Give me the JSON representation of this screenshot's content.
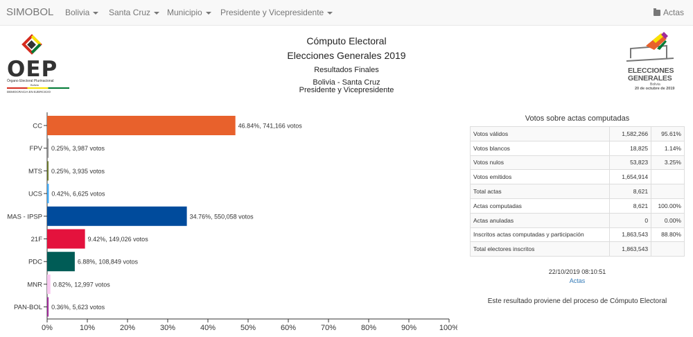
{
  "navbar": {
    "brand": "SIMOBOL",
    "items": [
      {
        "label": "Bolivia",
        "left": 94
      },
      {
        "label": "Santa Cruz",
        "left": 157
      },
      {
        "label": "Municipio",
        "left": 241
      },
      {
        "label": "Presidente y Vicepresidente",
        "left": 318
      }
    ],
    "actas": "Actas"
  },
  "header": {
    "title": "Cómputo Electoral",
    "subtitle": "Elecciones Generales 2019",
    "results": "Resultados Finales",
    "location": "Bolivia - Santa Cruz",
    "office": "Presidente y Vicepresidente"
  },
  "logos": {
    "oep": {
      "text": "OEP",
      "line1": "Órgano Electoral Plurinacional",
      "line2": "Bolivia",
      "line3": "DEMOCRACIA EN EJERCICIO"
    },
    "elecciones": {
      "line1": "ELECCIONES",
      "line2": "GENERALES",
      "line3": "Bolivia",
      "line4": "20 de octubre de 2019"
    }
  },
  "chart_data": {
    "type": "bar",
    "orientation": "horizontal",
    "categories": [
      "CC",
      "FPV",
      "MTS",
      "UCS",
      "MAS - IPSP",
      "21F",
      "PDC",
      "MNR",
      "PAN-BOL"
    ],
    "percent": [
      46.84,
      0.25,
      0.25,
      0.42,
      34.76,
      9.42,
      6.88,
      0.82,
      0.36
    ],
    "votes": [
      "741,166",
      "3,987",
      "3,935",
      "6,625",
      "550,058",
      "149,026",
      "108,849",
      "12,997",
      "5,623"
    ],
    "votes_suffix": "votos",
    "colors": [
      "#e8612c",
      "#8c8c8c",
      "#6c7a2d",
      "#3fa9f5",
      "#004b9c",
      "#e4123d",
      "#005c56",
      "#f9c8f0",
      "#a02c9b"
    ],
    "xlim": [
      0,
      100
    ],
    "xticks": [
      "0%",
      "10%",
      "20%",
      "30%",
      "40%",
      "50%",
      "60%",
      "70%",
      "80%",
      "90%",
      "100%"
    ]
  },
  "summary": {
    "title": "Votos sobre actas computadas",
    "rows": [
      {
        "label": "Votos válidos",
        "value": "1,582,266",
        "pct": "95.61%"
      },
      {
        "label": "Votos blancos",
        "value": "18,825",
        "pct": "1.14%"
      },
      {
        "label": "Votos nulos",
        "value": "53,823",
        "pct": "3.25%"
      },
      {
        "label": "Votos emitidos",
        "value": "1,654,914",
        "pct": ""
      },
      {
        "label": "Total actas",
        "value": "8,621",
        "pct": ""
      },
      {
        "label": "Actas computadas",
        "value": "8,621",
        "pct": "100.00%"
      },
      {
        "label": "Actas anuladas",
        "value": "0",
        "pct": "0.00%"
      },
      {
        "label": "Inscritos actas computadas y participación",
        "value": "1,863,543",
        "pct": "88.80%"
      },
      {
        "label": "Total electores inscritos",
        "value": "1,863,543",
        "pct": ""
      }
    ],
    "timestamp": "22/10/2019 08:10:51",
    "actas_link": "Actas",
    "note": "Este resultado proviene del proceso de Cómputo Electoral"
  }
}
